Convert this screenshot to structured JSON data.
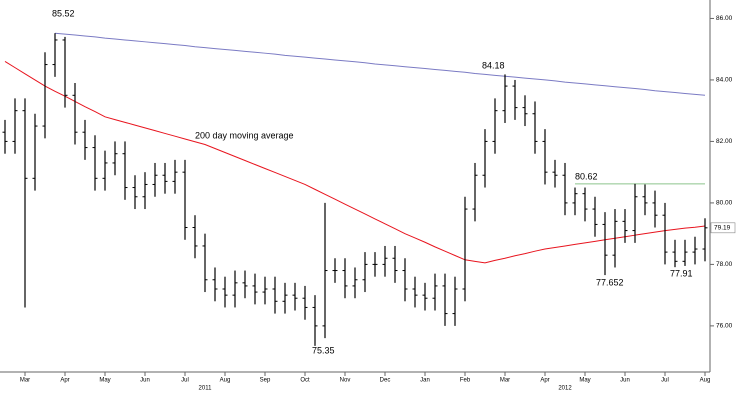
{
  "chart_data": {
    "type": "ohlc",
    "categories": [
      null,
      null,
      "Mar",
      null,
      null,
      null,
      "Apr",
      null,
      null,
      null,
      "May",
      null,
      null,
      null,
      "Jun",
      null,
      null,
      null,
      "Jul",
      null,
      null,
      null,
      "Aug",
      null,
      null,
      null,
      "Sep",
      null,
      null,
      null,
      "Oct",
      null,
      null,
      null,
      "Nov",
      null,
      null,
      null,
      "Dec",
      null,
      null,
      null,
      "Jan",
      null,
      null,
      null,
      "Feb",
      null,
      null,
      null,
      "Mar",
      null,
      null,
      null,
      "Apr",
      null,
      null,
      null,
      "May",
      null,
      null,
      null,
      "Jun",
      null,
      null,
      null,
      "Jul",
      null,
      null,
      null,
      "Aug"
    ],
    "years": [
      null,
      null,
      null,
      null,
      null,
      null,
      null,
      null,
      null,
      null,
      null,
      null,
      null,
      null,
      null,
      null,
      null,
      null,
      null,
      null,
      "2011",
      null,
      null,
      null,
      null,
      null,
      null,
      null,
      null,
      null,
      null,
      null,
      null,
      null,
      null,
      null,
      null,
      null,
      null,
      null,
      null,
      null,
      null,
      null,
      null,
      null,
      null,
      null,
      null,
      null,
      null,
      null,
      null,
      null,
      null,
      null,
      "2012",
      null,
      null,
      null,
      null,
      null,
      null,
      null,
      null,
      null,
      null,
      null,
      null,
      null,
      null
    ],
    "ohlc": {
      "color": "#000000",
      "open": [
        82.3,
        82.0,
        83.0,
        80.8,
        82.5,
        84.5,
        85.3,
        83.5,
        82.3,
        81.8,
        80.8,
        81.3,
        81.6,
        80.5,
        80.2,
        80.6,
        80.9,
        80.7,
        81.0,
        79.2,
        78.6,
        77.5,
        77.2,
        77.0,
        77.4,
        77.3,
        77.1,
        77.2,
        76.8,
        77.0,
        76.9,
        76.6,
        76.0,
        77.8,
        77.8,
        77.3,
        77.5,
        78.0,
        78.0,
        78.2,
        77.8,
        77.2,
        77.0,
        76.9,
        77.3,
        76.4,
        77.2,
        79.8,
        80.9,
        82.0,
        83.0,
        83.8,
        83.1,
        82.9,
        82.0,
        81.0,
        80.9,
        80.0,
        80.3,
        79.8,
        79.3,
        78.3,
        79.4,
        79.1,
        80.2,
        80.0,
        79.6,
        78.4,
        78.1,
        78.4,
        78.5
      ],
      "high": [
        82.7,
        83.4,
        83.4,
        82.9,
        84.9,
        85.52,
        85.4,
        83.9,
        82.7,
        82.2,
        81.7,
        82.0,
        82.0,
        80.9,
        81.0,
        81.3,
        81.3,
        81.4,
        81.4,
        79.6,
        79.0,
        77.9,
        77.6,
        77.8,
        77.8,
        77.7,
        77.6,
        77.6,
        77.4,
        77.4,
        77.3,
        77.0,
        80.0,
        78.2,
        78.2,
        77.9,
        78.4,
        78.4,
        78.6,
        78.6,
        78.2,
        77.6,
        77.4,
        77.7,
        77.7,
        77.6,
        80.2,
        81.3,
        82.4,
        83.4,
        84.18,
        84.0,
        83.5,
        83.3,
        82.4,
        81.4,
        81.3,
        80.5,
        80.5,
        80.2,
        79.7,
        79.8,
        79.8,
        80.62,
        80.6,
        80.4,
        80.0,
        78.8,
        78.8,
        78.9,
        79.5
      ],
      "low": [
        81.6,
        81.6,
        76.6,
        80.4,
        82.1,
        84.1,
        83.1,
        81.9,
        81.4,
        80.4,
        80.4,
        80.9,
        80.1,
        79.8,
        79.8,
        80.2,
        80.3,
        80.3,
        78.8,
        78.2,
        77.1,
        76.8,
        76.6,
        76.6,
        76.9,
        76.7,
        76.7,
        76.4,
        76.4,
        76.5,
        76.2,
        75.35,
        75.6,
        77.4,
        76.9,
        76.9,
        77.1,
        77.6,
        77.6,
        77.4,
        76.8,
        76.6,
        76.5,
        76.5,
        76.0,
        76.0,
        76.8,
        79.4,
        80.5,
        81.6,
        82.6,
        82.7,
        82.5,
        81.6,
        80.6,
        80.5,
        79.6,
        79.6,
        79.4,
        78.9,
        77.652,
        77.9,
        78.7,
        78.7,
        79.6,
        79.2,
        78.0,
        77.91,
        77.95,
        78.0,
        78.1
      ],
      "close": [
        82.0,
        83.0,
        80.8,
        82.5,
        84.5,
        85.3,
        83.5,
        82.3,
        81.8,
        80.8,
        81.3,
        81.6,
        80.5,
        80.2,
        80.6,
        80.9,
        80.7,
        81.0,
        79.2,
        78.6,
        77.5,
        77.2,
        77.0,
        77.4,
        77.3,
        77.1,
        77.2,
        76.8,
        77.0,
        76.9,
        76.6,
        76.0,
        77.8,
        77.8,
        77.3,
        77.5,
        78.0,
        78.0,
        78.2,
        77.8,
        77.2,
        77.0,
        76.9,
        77.3,
        76.4,
        77.2,
        79.8,
        80.9,
        82.0,
        83.0,
        83.8,
        83.1,
        82.9,
        82.0,
        81.0,
        80.9,
        80.0,
        80.3,
        79.8,
        79.3,
        78.3,
        79.4,
        79.1,
        80.2,
        80.0,
        79.6,
        78.4,
        78.1,
        78.4,
        78.5,
        79.19
      ]
    },
    "series": [
      {
        "name": "200 day moving average",
        "color": "#e8141e",
        "values": [
          84.6,
          84.4,
          84.2,
          84.0,
          83.8,
          83.63,
          83.47,
          83.3,
          83.13,
          82.97,
          82.8,
          82.71,
          82.62,
          82.53,
          82.44,
          82.35,
          82.26,
          82.17,
          82.08,
          81.99,
          81.9,
          81.77,
          81.64,
          81.51,
          81.38,
          81.25,
          81.12,
          80.99,
          80.86,
          80.73,
          80.6,
          80.44,
          80.28,
          80.12,
          79.96,
          79.8,
          79.64,
          79.48,
          79.32,
          79.16,
          79.0,
          78.86,
          78.72,
          78.57,
          78.43,
          78.29,
          78.15,
          78.1,
          78.05,
          78.13,
          78.2,
          78.28,
          78.35,
          78.43,
          78.5,
          78.55,
          78.6,
          78.65,
          78.7,
          78.75,
          78.8,
          78.85,
          78.9,
          78.95,
          79.0,
          79.05,
          79.1,
          79.14,
          79.18,
          79.21,
          79.25
        ]
      },
      {
        "color": "#7b7bc4",
        "values": [
          null,
          null,
          null,
          null,
          null,
          85.52,
          85.49,
          85.46,
          85.43,
          85.4,
          85.36,
          85.33,
          85.3,
          85.27,
          85.24,
          85.21,
          85.18,
          85.15,
          85.12,
          85.08,
          85.05,
          85.02,
          84.99,
          84.96,
          84.93,
          84.9,
          84.87,
          84.84,
          84.8,
          84.77,
          84.74,
          84.71,
          84.68,
          84.65,
          84.62,
          84.59,
          84.56,
          84.52,
          84.49,
          84.46,
          84.43,
          84.4,
          84.37,
          84.34,
          84.31,
          84.28,
          84.25,
          84.21,
          84.18,
          84.15,
          84.12,
          84.09,
          84.06,
          84.03,
          84.0,
          83.97,
          83.93,
          83.9,
          83.87,
          83.84,
          83.81,
          83.78,
          83.75,
          83.72,
          83.69,
          83.65,
          83.62,
          83.59,
          83.56,
          83.53,
          83.5
        ]
      },
      {
        "color": "#8cc48c",
        "values": [
          null,
          null,
          null,
          null,
          null,
          null,
          null,
          null,
          null,
          null,
          null,
          null,
          null,
          null,
          null,
          null,
          null,
          null,
          null,
          null,
          null,
          null,
          null,
          null,
          null,
          null,
          null,
          null,
          null,
          null,
          null,
          null,
          null,
          null,
          null,
          null,
          null,
          null,
          null,
          null,
          null,
          null,
          null,
          null,
          null,
          null,
          null,
          null,
          null,
          null,
          null,
          null,
          null,
          null,
          null,
          null,
          null,
          80.62,
          80.62,
          80.62,
          80.62,
          80.62,
          80.62,
          80.62,
          80.62,
          80.62,
          80.62,
          80.62,
          80.62,
          80.62,
          80.62
        ]
      }
    ],
    "annotations": [
      "85.52",
      "84.18",
      "80.62",
      "77.652",
      "77.91",
      "75.35"
    ],
    "ylim": [
      74.5,
      86.6
    ],
    "yticks": [
      {
        "value": 76,
        "label": "76.00"
      },
      {
        "value": 78,
        "label": "78.00"
      },
      {
        "value": 80,
        "label": "80.00"
      },
      {
        "value": 82,
        "label": "82.00"
      },
      {
        "value": 84,
        "label": "84.00"
      },
      {
        "value": 86,
        "label": "86.00"
      }
    ],
    "grid": false
  }
}
